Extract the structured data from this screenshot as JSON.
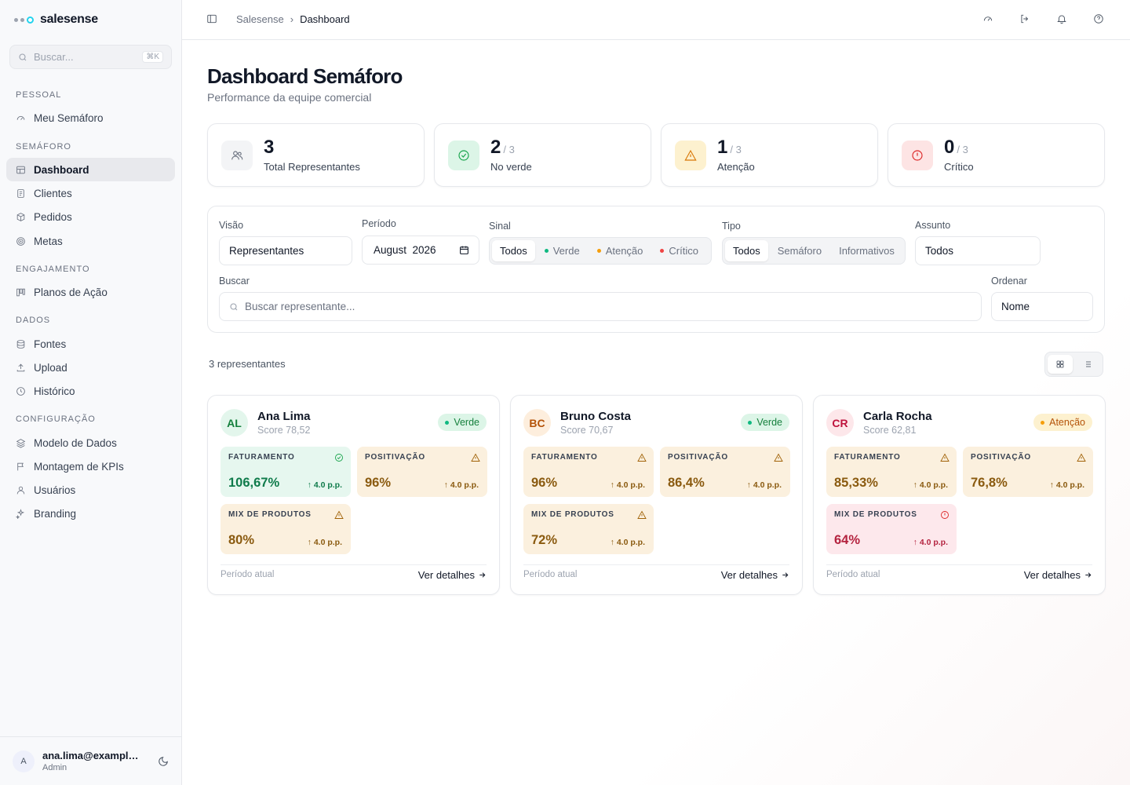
{
  "app": {
    "name": "salesense"
  },
  "search": {
    "placeholder": "Buscar...",
    "shortcut": "⌘K"
  },
  "sidebar": {
    "sections": [
      {
        "title": "PESSOAL",
        "items": [
          {
            "label": "Meu Semáforo",
            "icon": "gauge-icon"
          }
        ]
      },
      {
        "title": "SEMÁFORO",
        "items": [
          {
            "label": "Dashboard",
            "icon": "layout-icon",
            "active": true
          },
          {
            "label": "Clientes",
            "icon": "file-icon"
          },
          {
            "label": "Pedidos",
            "icon": "box-icon"
          },
          {
            "label": "Metas",
            "icon": "target-icon"
          }
        ]
      },
      {
        "title": "ENGAJAMENTO",
        "items": [
          {
            "label": "Planos de Ação",
            "icon": "kanban-icon"
          }
        ]
      },
      {
        "title": "DADOS",
        "items": [
          {
            "label": "Fontes",
            "icon": "database-icon"
          },
          {
            "label": "Upload",
            "icon": "upload-icon"
          },
          {
            "label": "Histórico",
            "icon": "clock-icon"
          }
        ]
      },
      {
        "title": "CONFIGURAÇÃO",
        "items": [
          {
            "label": "Modelo de Dados",
            "icon": "layers-icon"
          },
          {
            "label": "Montagem de KPIs",
            "icon": "flag-icon"
          },
          {
            "label": "Usuários",
            "icon": "user-icon"
          },
          {
            "label": "Branding",
            "icon": "sparkles-icon"
          }
        ]
      }
    ]
  },
  "user": {
    "initial": "A",
    "email": "ana.lima@example.com",
    "role": "Admin"
  },
  "breadcrumb": {
    "root": "Salesense",
    "current": "Dashboard"
  },
  "page": {
    "title": "Dashboard Semáforo",
    "subtitle": "Performance da equipe comercial"
  },
  "stats": [
    {
      "value": "3",
      "of": "",
      "label": "Total Representantes",
      "icon": "users-icon",
      "color": "#6b7280",
      "bg": "#f3f4f6"
    },
    {
      "value": "2",
      "of": "/ 3",
      "label": "No verde",
      "icon": "check-circle-icon",
      "color": "#16a34a",
      "bg": "#dcf5e7"
    },
    {
      "value": "1",
      "of": "/ 3",
      "label": "Atenção",
      "icon": "warning-icon",
      "color": "#d97706",
      "bg": "#fdf1cf"
    },
    {
      "value": "0",
      "of": "/ 3",
      "label": "Crítico",
      "icon": "alert-circle-icon",
      "color": "#dc2626",
      "bg": "#fde4e4"
    }
  ],
  "filters": {
    "visao": {
      "label": "Visão",
      "value": "Representantes"
    },
    "periodo": {
      "label": "Período",
      "value": "August  2026"
    },
    "sinal": {
      "label": "Sinal",
      "options": [
        "Todos",
        "Verde",
        "Atenção",
        "Crítico"
      ],
      "selected": "Todos",
      "colors": [
        "",
        "#10b981",
        "#f59e0b",
        "#ef4444"
      ]
    },
    "tipo": {
      "label": "Tipo",
      "options": [
        "Todos",
        "Semáforo",
        "Informativos"
      ],
      "selected": "Todos"
    },
    "assunto": {
      "label": "Assunto",
      "value": "Todos"
    },
    "buscar": {
      "label": "Buscar",
      "placeholder": "Buscar representante..."
    },
    "ordenar": {
      "label": "Ordenar",
      "value": "Nome"
    }
  },
  "results": {
    "count_text": "3 representantes"
  },
  "cards": [
    {
      "initials": "AL",
      "name": "Ana Lima",
      "score": "Score 78,52",
      "status": "Verde",
      "status_tone": "g",
      "avatar_tone": "g",
      "kpis": [
        {
          "label": "FATURAMENTO",
          "value": "106,67%",
          "delta": "↑ 4.0 p.p.",
          "tone": "g"
        },
        {
          "label": "POSITIVAÇÃO",
          "value": "96%",
          "delta": "↑ 4.0 p.p.",
          "tone": "a"
        },
        {
          "label": "MIX DE PRODUTOS",
          "value": "80%",
          "delta": "↑ 4.0 p.p.",
          "tone": "a"
        }
      ],
      "footer": "Período atual",
      "link": "Ver detalhes"
    },
    {
      "initials": "BC",
      "name": "Bruno Costa",
      "score": "Score 70,67",
      "status": "Verde",
      "status_tone": "g",
      "avatar_tone": "a",
      "kpis": [
        {
          "label": "FATURAMENTO",
          "value": "96%",
          "delta": "↑ 4.0 p.p.",
          "tone": "a"
        },
        {
          "label": "POSITIVAÇÃO",
          "value": "86,4%",
          "delta": "↑ 4.0 p.p.",
          "tone": "a"
        },
        {
          "label": "MIX DE PRODUTOS",
          "value": "72%",
          "delta": "↑ 4.0 p.p.",
          "tone": "a"
        }
      ],
      "footer": "Período atual",
      "link": "Ver detalhes"
    },
    {
      "initials": "CR",
      "name": "Carla Rocha",
      "score": "Score 62,81",
      "status": "Atenção",
      "status_tone": "a",
      "avatar_tone": "r",
      "kpis": [
        {
          "label": "FATURAMENTO",
          "value": "85,33%",
          "delta": "↑ 4.0 p.p.",
          "tone": "a"
        },
        {
          "label": "POSITIVAÇÃO",
          "value": "76,8%",
          "delta": "↑ 4.0 p.p.",
          "tone": "a"
        },
        {
          "label": "MIX DE PRODUTOS",
          "value": "64%",
          "delta": "↑ 4.0 p.p.",
          "tone": "r"
        }
      ],
      "footer": "Período atual",
      "link": "Ver detalhes"
    }
  ]
}
